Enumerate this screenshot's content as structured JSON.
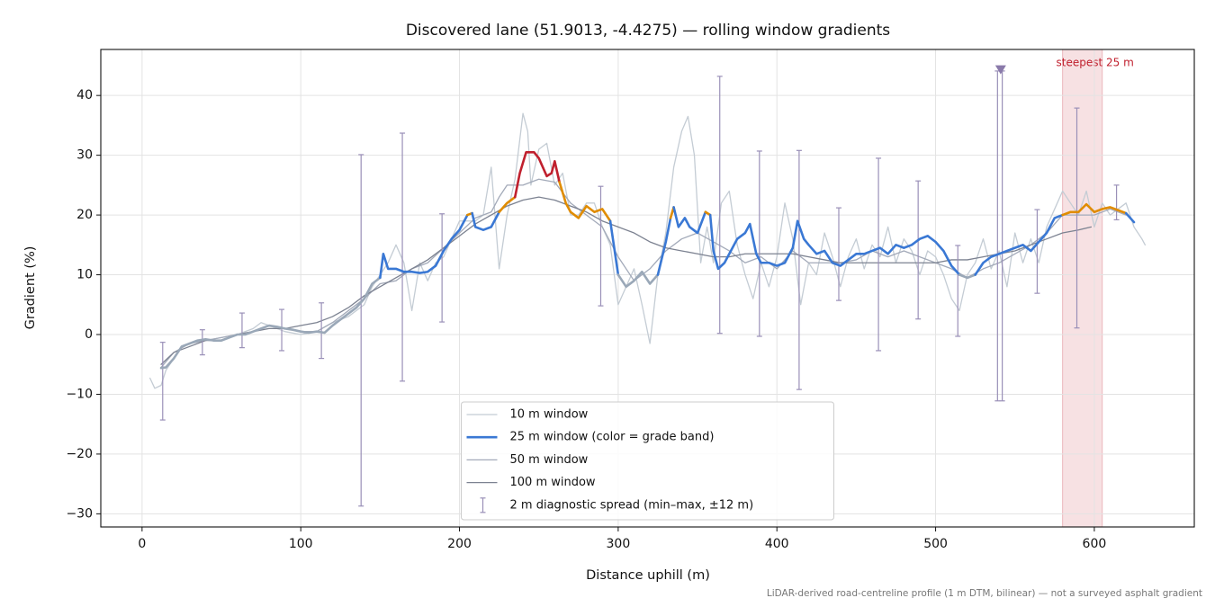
{
  "chart_data": {
    "type": "line",
    "title": "Discovered lane (51.9013, -4.4275) — rolling window gradients",
    "xlabel": "Distance uphill (m)",
    "ylabel": "Gradient (%)",
    "footnote": "LiDAR-derived road-centreline profile (1 m DTM, bilinear) — not a surveyed asphalt gradient",
    "xlim": [
      -26,
      663
    ],
    "ylim": [
      -32.2,
      47.7
    ],
    "xticks": [
      0,
      100,
      200,
      300,
      400,
      500,
      600
    ],
    "yticks": [
      {
        "value": -30,
        "label": "−30"
      },
      {
        "value": -20,
        "label": "−20"
      },
      {
        "value": -10,
        "label": "−10"
      },
      0,
      10,
      20,
      30,
      40
    ],
    "grid": true,
    "legend": "lower center",
    "span": {
      "label": "steepest 25 m",
      "x0": 580,
      "x1": 605,
      "color": "#e7a9b0",
      "label_color": "#c0202e"
    },
    "series": [
      {
        "name": "10 m window",
        "color": "#c4ccd4",
        "width": 1.3,
        "x": [
          5,
          8,
          12,
          15,
          20,
          25,
          30,
          40,
          50,
          60,
          70,
          75,
          80,
          90,
          100,
          110,
          120,
          130,
          140,
          145,
          150,
          155,
          160,
          165,
          170,
          175,
          180,
          185,
          190,
          195,
          200,
          205,
          210,
          215,
          220,
          225,
          230,
          235,
          240,
          243,
          245,
          250,
          255,
          260,
          265,
          270,
          275,
          280,
          285,
          290,
          295,
          300,
          305,
          310,
          315,
          320,
          325,
          330,
          335,
          340,
          344,
          348,
          352,
          356,
          360,
          365,
          370,
          375,
          380,
          385,
          390,
          395,
          400,
          405,
          410,
          415,
          420,
          425,
          430,
          435,
          440,
          445,
          450,
          455,
          460,
          465,
          470,
          475,
          480,
          485,
          490,
          495,
          500,
          505,
          510,
          515,
          520,
          525,
          530,
          535,
          540,
          545,
          550,
          555,
          560,
          565,
          570,
          575,
          580,
          585,
          590,
          595,
          600,
          605,
          610,
          615,
          620,
          625,
          630,
          632
        ],
        "values": [
          -7.3,
          -9,
          -8.5,
          -6,
          -4,
          -2,
          -1.5,
          -1,
          -0.5,
          0,
          1,
          2,
          1.5,
          0.5,
          0,
          0.5,
          2,
          3,
          5,
          8,
          10,
          12,
          15,
          12,
          4,
          12,
          9,
          12,
          13,
          16,
          19,
          19,
          19,
          20,
          28,
          11,
          20,
          26,
          37,
          34,
          25,
          31,
          32,
          25,
          27,
          20,
          20,
          22,
          22,
          18,
          15,
          5,
          8,
          11,
          5,
          -1.5,
          10,
          17,
          28,
          34,
          36.5,
          30,
          12,
          18,
          12,
          22,
          24,
          15,
          10,
          6,
          12,
          8,
          13,
          22,
          16,
          5,
          12,
          10,
          17,
          13,
          8,
          13,
          16,
          11,
          15,
          13,
          18,
          12,
          16,
          14,
          10,
          14,
          13,
          10,
          6,
          4,
          10,
          12,
          16,
          11,
          14,
          8,
          17,
          12,
          16,
          12,
          18,
          21,
          24,
          22,
          20,
          24,
          18,
          22,
          20,
          21,
          22,
          18,
          16,
          15
        ]
      },
      {
        "name": "25 m window (color = grade band)",
        "color": "#3a78d4",
        "width": 2.6,
        "bands": [
          {
            "below": 10,
            "color": "#9aa8b8"
          },
          {
            "below": 20,
            "color": "#3a78d4"
          },
          {
            "below": 25,
            "color": "#e08c00"
          },
          {
            "color": "#c0202e"
          }
        ],
        "x": [
          12,
          15,
          20,
          25,
          30,
          35,
          40,
          45,
          50,
          55,
          60,
          65,
          70,
          75,
          80,
          85,
          90,
          95,
          100,
          105,
          110,
          115,
          120,
          125,
          130,
          135,
          140,
          145,
          150,
          152,
          155,
          160,
          165,
          170,
          175,
          180,
          185,
          190,
          195,
          200,
          205,
          208,
          210,
          215,
          220,
          225,
          230,
          235,
          238,
          242,
          247,
          250,
          255,
          258,
          260,
          263,
          267,
          270,
          275,
          280,
          285,
          290,
          295,
          300,
          305,
          310,
          315,
          320,
          325,
          330,
          333,
          335,
          338,
          342,
          345,
          350,
          355,
          358,
          360,
          363,
          367,
          370,
          375,
          380,
          383,
          387,
          390,
          395,
          400,
          405,
          410,
          413,
          417,
          420,
          425,
          430,
          435,
          440,
          445,
          450,
          455,
          460,
          465,
          470,
          475,
          480,
          485,
          490,
          495,
          500,
          505,
          510,
          515,
          520,
          525,
          530,
          535,
          540,
          545,
          550,
          555,
          560,
          565,
          570,
          575,
          580,
          585,
          590,
          595,
          600,
          605,
          610,
          615,
          620,
          625
        ],
        "values": [
          -5.6,
          -5.5,
          -4,
          -2,
          -1.5,
          -1,
          -0.8,
          -1,
          -1,
          -0.5,
          0,
          0,
          0.5,
          1,
          1.5,
          1.3,
          1,
          0.8,
          0.5,
          0.3,
          0.5,
          0.3,
          1.5,
          2.5,
          3.5,
          4.5,
          6,
          8.5,
          9.5,
          13.5,
          11,
          11,
          10.5,
          10.5,
          10.3,
          10.5,
          11.5,
          14,
          16,
          17.5,
          20,
          20.3,
          18,
          17.5,
          18,
          20.5,
          22,
          23,
          27,
          30.5,
          30.5,
          29.5,
          26.5,
          27,
          29,
          25.5,
          22,
          20.5,
          19.5,
          21.5,
          20.5,
          21,
          19,
          10,
          8,
          9,
          10.5,
          8.5,
          10,
          15.5,
          19.5,
          21.3,
          18,
          19.5,
          18,
          17,
          20.5,
          20,
          14,
          11,
          12,
          13.5,
          16,
          17,
          18.5,
          13.5,
          12,
          12,
          11.5,
          12,
          14.5,
          19,
          16,
          15,
          13.5,
          14,
          12,
          11.5,
          12.5,
          13.5,
          13.5,
          14,
          14.5,
          13.5,
          15,
          14.5,
          15,
          16,
          16.5,
          15.5,
          14,
          11.5,
          10,
          9.5,
          10,
          12,
          13,
          13.5,
          14,
          14.5,
          15,
          14,
          15.5,
          17,
          19.5,
          20,
          20.5,
          20.5,
          21.8,
          20.5,
          21,
          21.3,
          20.8,
          20.3,
          18.8
        ]
      },
      {
        "name": "50 m window",
        "color": "#a3aab9",
        "width": 1.3,
        "x": [
          12,
          20,
          30,
          40,
          50,
          60,
          70,
          80,
          90,
          100,
          110,
          120,
          130,
          140,
          150,
          160,
          170,
          180,
          190,
          200,
          210,
          220,
          225,
          230,
          240,
          250,
          260,
          270,
          280,
          290,
          300,
          310,
          320,
          330,
          340,
          350,
          360,
          370,
          380,
          390,
          400,
          410,
          420,
          430,
          440,
          450,
          460,
          470,
          480,
          490,
          500,
          510,
          520,
          530,
          540,
          550,
          560,
          570,
          580,
          590,
          600,
          610,
          620
        ],
        "values": [
          -5.5,
          -3,
          -1.5,
          -1,
          -0.5,
          0,
          0.5,
          1.5,
          1,
          0.5,
          0.5,
          2,
          4,
          6,
          8.5,
          9,
          11,
          12,
          14.5,
          17,
          19.5,
          20.5,
          23,
          25,
          25,
          26,
          25.5,
          22,
          20,
          18,
          13,
          9,
          11,
          14,
          16,
          17,
          15.5,
          14,
          12,
          13,
          11,
          14,
          12,
          12,
          12,
          12.5,
          14,
          13,
          14,
          13,
          12,
          11,
          9.5,
          11,
          12,
          13.5,
          15,
          17,
          20,
          20,
          20,
          21,
          20
        ]
      },
      {
        "name": "100 m window",
        "color": "#7c8291",
        "width": 1.3,
        "x": [
          12,
          20,
          30,
          40,
          50,
          60,
          70,
          80,
          90,
          100,
          110,
          120,
          130,
          140,
          150,
          160,
          170,
          180,
          190,
          200,
          210,
          220,
          230,
          240,
          250,
          260,
          270,
          280,
          290,
          300,
          310,
          320,
          330,
          340,
          350,
          360,
          370,
          380,
          390,
          400,
          410,
          420,
          430,
          440,
          450,
          460,
          470,
          480,
          490,
          500,
          510,
          520,
          530,
          540,
          550,
          560,
          570,
          580,
          590,
          598
        ],
        "values": [
          -5,
          -3,
          -2,
          -1,
          -1,
          0,
          0.5,
          1,
          1,
          1.5,
          2,
          3,
          4.5,
          6.5,
          8,
          9.5,
          11,
          12.5,
          14.5,
          16.5,
          18.5,
          20,
          21.5,
          22.5,
          23,
          22.5,
          21.5,
          20.5,
          19,
          18,
          17,
          15.5,
          14.5,
          14,
          13.5,
          13,
          13,
          13.5,
          13.5,
          13.5,
          13.5,
          13,
          12.5,
          12,
          12,
          12,
          12,
          12,
          12,
          12,
          12.5,
          12.5,
          13,
          13.5,
          14,
          15,
          16,
          17,
          17.5,
          18
        ]
      }
    ],
    "errorbars": {
      "name": "2 m diagnostic spread (min–max, ±12 m)",
      "color": "#9a90b8",
      "x": [
        13,
        38,
        63,
        88,
        113,
        138,
        164,
        189,
        289,
        364,
        389,
        414,
        439,
        464,
        489,
        514,
        539,
        542,
        564,
        589,
        614
      ],
      "min": [
        -14.3,
        -3.4,
        -2.2,
        -2.7,
        -4,
        -28.7,
        -7.8,
        2.1,
        4.8,
        0.2,
        -0.3,
        -9.2,
        5.7,
        -2.7,
        2.6,
        -0.3,
        -11.1,
        -11.1,
        6.9,
        1.1,
        19.2
      ],
      "max": [
        -1.3,
        0.8,
        3.6,
        4.2,
        5.3,
        30.1,
        33.7,
        20.2,
        24.8,
        43.2,
        30.7,
        30.8,
        21.2,
        29.5,
        25.7,
        14.9,
        44.1,
        44.1,
        20.9,
        37.9,
        25
      ]
    },
    "marker": {
      "x": 541,
      "y": 44.3,
      "color": "#8a7aaa"
    }
  }
}
